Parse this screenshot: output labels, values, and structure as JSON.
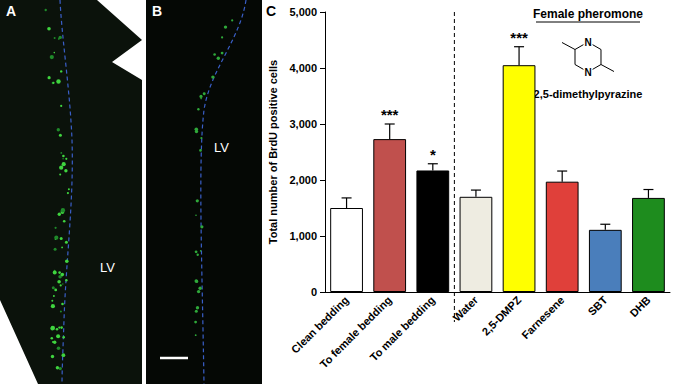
{
  "panels": [
    {
      "label": "A",
      "region": "LV"
    },
    {
      "label": "B",
      "region": "LV"
    }
  ],
  "inset": {
    "title": "Female pheromone",
    "atoms": [
      "N",
      "N"
    ],
    "compound": "2,5-dimethylpyrazine"
  },
  "chart_data": {
    "type": "bar",
    "panel_label": "C",
    "ylabel": "Total number of BrdU positive cells",
    "categories": [
      "Clean bedding",
      "To female bedding",
      "To male bedding",
      "Water",
      "2,5-DMPZ",
      "Farnesene",
      "SBT",
      "DHB"
    ],
    "values": [
      1500,
      2730,
      2170,
      1700,
      4050,
      1970,
      1110,
      1680
    ],
    "errors": [
      180,
      270,
      120,
      120,
      330,
      190,
      100,
      150
    ],
    "significance": [
      null,
      "***",
      "*",
      null,
      "***",
      null,
      null,
      null
    ],
    "colors": [
      "#ffffff",
      "#c0504d",
      "#000000",
      "#eeece1",
      "#ffff00",
      "#e0403a",
      "#4a7ebb",
      "#1e8c1e"
    ],
    "ylim": [
      0,
      5000
    ],
    "yticks": [
      0,
      1000,
      2000,
      3000,
      4000,
      5000
    ],
    "grid": false
  }
}
